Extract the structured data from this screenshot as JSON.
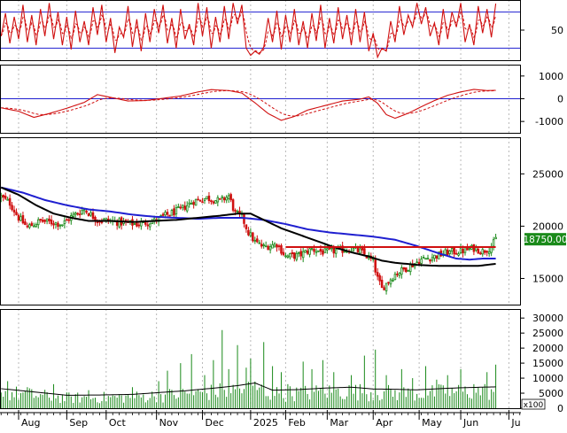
{
  "colors": {
    "background": "#ffffff",
    "frame": "#000000",
    "grid": "#b8b8b8",
    "blue_line": "#1f1fd0",
    "red": "#d01010",
    "black_ma": "#000000",
    "candle_up": "#1a8a1a",
    "candle_down": "#d01010",
    "volume_bar": "#1a8a1a",
    "price_badge_bg": "#1a8a1a",
    "price_badge_text": "#ffffff"
  },
  "x_axis": {
    "months": [
      {
        "label": "Aug",
        "i": 8
      },
      {
        "label": "Sep",
        "i": 30
      },
      {
        "label": "Oct",
        "i": 48
      },
      {
        "label": "Nov",
        "i": 71
      },
      {
        "label": "Dec",
        "i": 92
      },
      {
        "label": "2025",
        "i": 114
      },
      {
        "label": "Feb",
        "i": 130
      },
      {
        "label": "Mar",
        "i": 149
      },
      {
        "label": "Apr",
        "i": 170
      },
      {
        "label": "May",
        "i": 191
      },
      {
        "label": "Jun",
        "i": 210
      },
      {
        "label": "Ju",
        "i": 232
      }
    ],
    "n_days": 227,
    "n_slots": 238
  },
  "price_badge": "18750.00",
  "chart_data": [
    {
      "name": "stochastic",
      "type": "line",
      "ylim": [
        0,
        100
      ],
      "yticks": [
        "50"
      ],
      "ytick_values": [
        50
      ],
      "hlines": [
        80,
        20
      ],
      "samples": [
        [
          0,
          40
        ],
        [
          2,
          78
        ],
        [
          4,
          28
        ],
        [
          6,
          72
        ],
        [
          8,
          35
        ],
        [
          10,
          92
        ],
        [
          12,
          30
        ],
        [
          14,
          75
        ],
        [
          16,
          25
        ],
        [
          18,
          85
        ],
        [
          20,
          40
        ],
        [
          22,
          95
        ],
        [
          24,
          35
        ],
        [
          26,
          80
        ],
        [
          28,
          25
        ],
        [
          30,
          72
        ],
        [
          32,
          18
        ],
        [
          34,
          82
        ],
        [
          36,
          30
        ],
        [
          38,
          65
        ],
        [
          40,
          25
        ],
        [
          42,
          88
        ],
        [
          44,
          42
        ],
        [
          46,
          92
        ],
        [
          48,
          30
        ],
        [
          50,
          70
        ],
        [
          52,
          12
        ],
        [
          54,
          55
        ],
        [
          56,
          38
        ],
        [
          58,
          90
        ],
        [
          60,
          22
        ],
        [
          62,
          68
        ],
        [
          64,
          15
        ],
        [
          66,
          78
        ],
        [
          68,
          30
        ],
        [
          70,
          85
        ],
        [
          72,
          45
        ],
        [
          74,
          92
        ],
        [
          76,
          28
        ],
        [
          78,
          70
        ],
        [
          80,
          20
        ],
        [
          82,
          85
        ],
        [
          84,
          35
        ],
        [
          86,
          60
        ],
        [
          88,
          25
        ],
        [
          90,
          95
        ],
        [
          92,
          40
        ],
        [
          94,
          88
        ],
        [
          96,
          20
        ],
        [
          98,
          72
        ],
        [
          100,
          30
        ],
        [
          102,
          90
        ],
        [
          104,
          35
        ],
        [
          106,
          95
        ],
        [
          108,
          60
        ],
        [
          110,
          92
        ],
        [
          112,
          20
        ],
        [
          114,
          8
        ],
        [
          116,
          15
        ],
        [
          118,
          10
        ],
        [
          120,
          22
        ],
        [
          122,
          70
        ],
        [
          124,
          30
        ],
        [
          126,
          82
        ],
        [
          128,
          18
        ],
        [
          130,
          75
        ],
        [
          132,
          30
        ],
        [
          134,
          85
        ],
        [
          136,
          25
        ],
        [
          138,
          65
        ],
        [
          140,
          20
        ],
        [
          142,
          78
        ],
        [
          144,
          32
        ],
        [
          146,
          92
        ],
        [
          148,
          20
        ],
        [
          150,
          70
        ],
        [
          152,
          28
        ],
        [
          154,
          88
        ],
        [
          156,
          35
        ],
        [
          158,
          75
        ],
        [
          160,
          25
        ],
        [
          162,
          85
        ],
        [
          164,
          30
        ],
        [
          166,
          80
        ],
        [
          168,
          15
        ],
        [
          170,
          45
        ],
        [
          172,
          5
        ],
        [
          174,
          20
        ],
        [
          176,
          15
        ],
        [
          178,
          65
        ],
        [
          180,
          30
        ],
        [
          182,
          90
        ],
        [
          184,
          42
        ],
        [
          186,
          75
        ],
        [
          188,
          55
        ],
        [
          190,
          95
        ],
        [
          192,
          60
        ],
        [
          194,
          88
        ],
        [
          196,
          40
        ],
        [
          198,
          62
        ],
        [
          200,
          25
        ],
        [
          202,
          85
        ],
        [
          204,
          35
        ],
        [
          206,
          80
        ],
        [
          208,
          55
        ],
        [
          210,
          95
        ],
        [
          212,
          30
        ],
        [
          214,
          60
        ],
        [
          216,
          25
        ],
        [
          218,
          90
        ],
        [
          220,
          45
        ],
        [
          222,
          85
        ],
        [
          224,
          38
        ],
        [
          226,
          94
        ]
      ]
    },
    {
      "name": "macd",
      "type": "line",
      "ylim": [
        -1500,
        1500
      ],
      "yticks": [
        "1000",
        "0",
        "-1000"
      ],
      "ytick_values": [
        1000,
        0,
        -1000
      ],
      "hlines": [
        0
      ],
      "samples": [
        [
          0,
          -400
        ],
        [
          8,
          -550
        ],
        [
          15,
          -820
        ],
        [
          22,
          -650
        ],
        [
          30,
          -420
        ],
        [
          38,
          -160
        ],
        [
          44,
          180
        ],
        [
          50,
          60
        ],
        [
          58,
          -100
        ],
        [
          66,
          -80
        ],
        [
          74,
          20
        ],
        [
          82,
          120
        ],
        [
          90,
          300
        ],
        [
          96,
          400
        ],
        [
          104,
          360
        ],
        [
          110,
          250
        ],
        [
          116,
          -180
        ],
        [
          122,
          -650
        ],
        [
          128,
          -950
        ],
        [
          134,
          -780
        ],
        [
          140,
          -500
        ],
        [
          148,
          -300
        ],
        [
          156,
          -100
        ],
        [
          164,
          -20
        ],
        [
          168,
          80
        ],
        [
          172,
          -200
        ],
        [
          176,
          -700
        ],
        [
          180,
          -860
        ],
        [
          186,
          -640
        ],
        [
          192,
          -350
        ],
        [
          198,
          -80
        ],
        [
          204,
          150
        ],
        [
          210,
          300
        ],
        [
          216,
          410
        ],
        [
          222,
          360
        ],
        [
          226,
          370
        ]
      ]
    },
    {
      "name": "price",
      "type": "candlestick",
      "ylim": [
        12500,
        28500
      ],
      "yticks": [
        "25000",
        "20000",
        "15000"
      ],
      "ytick_values": [
        25000,
        20000,
        15000
      ],
      "close_samples": [
        [
          0,
          22800
        ],
        [
          4,
          22200
        ],
        [
          8,
          20800
        ],
        [
          12,
          19900
        ],
        [
          18,
          20500
        ],
        [
          22,
          20400
        ],
        [
          28,
          20200
        ],
        [
          32,
          20900
        ],
        [
          38,
          21600
        ],
        [
          44,
          20600
        ],
        [
          50,
          20500
        ],
        [
          56,
          20300
        ],
        [
          62,
          20200
        ],
        [
          70,
          20500
        ],
        [
          76,
          21100
        ],
        [
          82,
          21600
        ],
        [
          88,
          22400
        ],
        [
          94,
          22700
        ],
        [
          100,
          22400
        ],
        [
          104,
          22900
        ],
        [
          107,
          21200
        ],
        [
          110,
          20900
        ],
        [
          113,
          19400
        ],
        [
          116,
          18500
        ],
        [
          120,
          18000
        ],
        [
          126,
          18300
        ],
        [
          130,
          17100
        ],
        [
          136,
          17200
        ],
        [
          142,
          17800
        ],
        [
          148,
          17500
        ],
        [
          154,
          17700
        ],
        [
          160,
          17800
        ],
        [
          164,
          17600
        ],
        [
          168,
          17000
        ],
        [
          170,
          16600
        ],
        [
          172,
          15000
        ],
        [
          174,
          14000
        ],
        [
          176,
          14500
        ],
        [
          180,
          15400
        ],
        [
          186,
          16100
        ],
        [
          192,
          16800
        ],
        [
          198,
          17100
        ],
        [
          204,
          17500
        ],
        [
          210,
          17600
        ],
        [
          216,
          17900
        ],
        [
          220,
          17600
        ],
        [
          224,
          18000
        ],
        [
          226,
          18750
        ]
      ],
      "blue_ma": [
        [
          0,
          23700
        ],
        [
          10,
          23200
        ],
        [
          20,
          22500
        ],
        [
          30,
          22000
        ],
        [
          40,
          21600
        ],
        [
          50,
          21400
        ],
        [
          60,
          21100
        ],
        [
          70,
          20900
        ],
        [
          80,
          20800
        ],
        [
          90,
          20700
        ],
        [
          100,
          20800
        ],
        [
          110,
          20800
        ],
        [
          120,
          20600
        ],
        [
          130,
          20200
        ],
        [
          140,
          19700
        ],
        [
          150,
          19400
        ],
        [
          160,
          19200
        ],
        [
          170,
          19000
        ],
        [
          180,
          18700
        ],
        [
          190,
          18100
        ],
        [
          200,
          17400
        ],
        [
          208,
          16900
        ],
        [
          214,
          16800
        ],
        [
          220,
          16900
        ],
        [
          226,
          16900
        ]
      ],
      "black_ma": [
        [
          0,
          23700
        ],
        [
          8,
          23000
        ],
        [
          16,
          22000
        ],
        [
          24,
          21200
        ],
        [
          32,
          20800
        ],
        [
          40,
          20500
        ],
        [
          50,
          20500
        ],
        [
          60,
          20400
        ],
        [
          70,
          20500
        ],
        [
          80,
          20600
        ],
        [
          90,
          20800
        ],
        [
          100,
          21000
        ],
        [
          108,
          21200
        ],
        [
          114,
          21200
        ],
        [
          120,
          20600
        ],
        [
          128,
          19800
        ],
        [
          136,
          19200
        ],
        [
          144,
          18600
        ],
        [
          152,
          18000
        ],
        [
          160,
          17500
        ],
        [
          168,
          17100
        ],
        [
          174,
          16700
        ],
        [
          180,
          16500
        ],
        [
          190,
          16300
        ],
        [
          200,
          16200
        ],
        [
          210,
          16200
        ],
        [
          218,
          16200
        ],
        [
          226,
          16400
        ]
      ],
      "red_hline": {
        "value": 18000,
        "from_i": 130,
        "to_i": 226
      }
    },
    {
      "name": "volume",
      "type": "bar",
      "ylim": [
        0,
        33000
      ],
      "yticks": [
        "30000",
        "25000",
        "20000",
        "15000",
        "10000",
        "5000",
        "0"
      ],
      "ytick_values": [
        30000,
        25000,
        20000,
        15000,
        10000,
        5000,
        0
      ],
      "unit_label": "x100",
      "spikes": [
        [
          3,
          9000
        ],
        [
          12,
          7000
        ],
        [
          24,
          8000
        ],
        [
          40,
          6000
        ],
        [
          60,
          7000
        ],
        [
          72,
          9000
        ],
        [
          76,
          12500
        ],
        [
          82,
          15000
        ],
        [
          87,
          18000
        ],
        [
          93,
          11000
        ],
        [
          97,
          16000
        ],
        [
          101,
          26000
        ],
        [
          104,
          13000
        ],
        [
          108,
          21000
        ],
        [
          112,
          13500
        ],
        [
          114,
          16500
        ],
        [
          120,
          22000
        ],
        [
          124,
          14000
        ],
        [
          128,
          12000
        ],
        [
          131,
          8000
        ],
        [
          138,
          15500
        ],
        [
          142,
          13000
        ],
        [
          147,
          16000
        ],
        [
          152,
          12000
        ],
        [
          160,
          11000
        ],
        [
          166,
          17500
        ],
        [
          171,
          19500
        ],
        [
          176,
          11000
        ],
        [
          183,
          13000
        ],
        [
          188,
          10000
        ],
        [
          194,
          14000
        ],
        [
          199,
          9500
        ],
        [
          204,
          11000
        ],
        [
          210,
          13000
        ],
        [
          216,
          8000
        ],
        [
          222,
          12000
        ],
        [
          226,
          14500
        ]
      ],
      "ma": [
        [
          0,
          6500
        ],
        [
          15,
          5400
        ],
        [
          30,
          4300
        ],
        [
          45,
          4400
        ],
        [
          60,
          4600
        ],
        [
          72,
          5200
        ],
        [
          84,
          5800
        ],
        [
          96,
          6600
        ],
        [
          108,
          7500
        ],
        [
          116,
          8400
        ],
        [
          124,
          6000
        ],
        [
          136,
          6200
        ],
        [
          148,
          6700
        ],
        [
          160,
          7000
        ],
        [
          170,
          6400
        ],
        [
          180,
          6300
        ],
        [
          190,
          6100
        ],
        [
          200,
          6500
        ],
        [
          210,
          6800
        ],
        [
          220,
          7000
        ],
        [
          226,
          7100
        ]
      ]
    }
  ]
}
